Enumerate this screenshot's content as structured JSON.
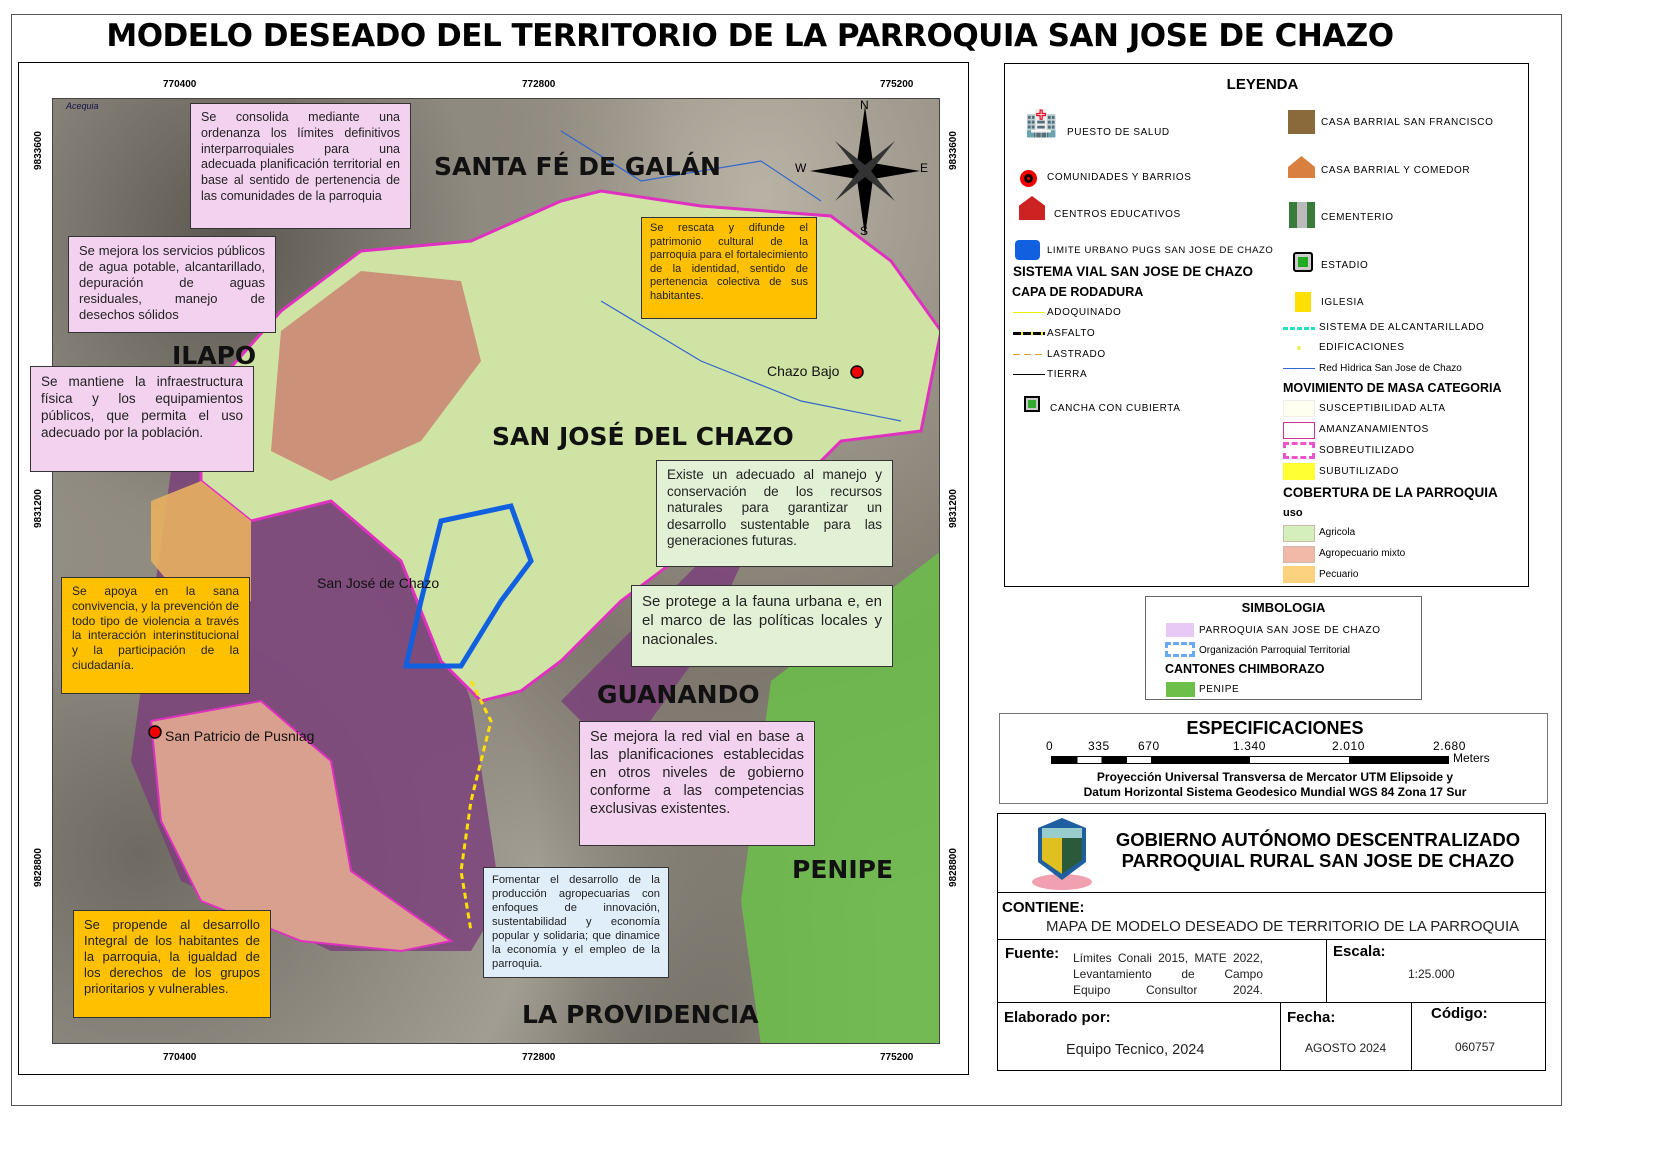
{
  "title": "MODELO DESEADO DEL TERRITORIO DE LA PARROQUIA SAN JOSE DE CHAZO",
  "map": {
    "x_ticks": [
      "770400",
      "772800",
      "775200"
    ],
    "y_ticks": [
      "9833600",
      "9831200",
      "9828800"
    ],
    "regions": {
      "santa_fe": "SANTA FÉ DE GALÁN",
      "ilapo": "ILAPO",
      "san_jose": "SAN JOSÉ DEL CHAZO",
      "guanando": "GUANANDO",
      "penipe": "PENIPE",
      "la_providencia": "LA PROVIDENCIA"
    },
    "towns": {
      "chazo_bajo": "Chazo Bajo",
      "san_jose": "San José de Chazo",
      "san_patricio": "San Patricio de Pusniag"
    },
    "acequia": "Acequia",
    "compass": {
      "n": "N",
      "s": "S",
      "e": "E",
      "w": "W"
    },
    "notes": [
      "Se consolida mediante una ordenanza los límites definitivos interparroquiales para una adecuada planificación territorial en base al sentido de pertenencia de las comunidades de la parroquia",
      "Se mejora los servicios públicos de agua potable, alcantarillado, depuración de aguas residuales, manejo de desechos sólidos",
      "Se mantiene la infraestructura física y los equipamientos públicos, que permita el uso adecuado por la población.",
      "Se rescata y difunde el patrimonio cultural de la parroquia para el fortalecimiento de la identidad, sentido de pertenencia colectiva de sus habitantes.",
      "Existe un adecuado al manejo y conservación de los recursos naturales para garantizar un desarrollo sustentable para las generaciones futuras.",
      "Se protege a la fauna urbana e, en el marco de las políticas locales y nacionales.",
      "Se apoya en la sana convivencia, y la prevención de todo tipo de violencia a través la interacción interinstitucional y la participación de la ciudadanía.",
      "Se mejora la red vial en base a las planificaciones establecidas en otros niveles de gobierno conforme a las competencias exclusivas existentes.",
      "Fomentar el desarrollo de la producción agropecuarias con enfoques de innovación, sustentabilidad y economía popular y solidaria; que dinamice la economía y el empleo de la parroquia.",
      "Se propende al desarrollo Integral de los habitantes de la parroquia, la igualdad de los derechos de los grupos prioritarios y vulnerables."
    ]
  },
  "legend": {
    "title": "LEYENDA",
    "left": {
      "salud": "PUESTO DE SALUD",
      "comunidades": "COMUNIDADES Y BARRIOS",
      "educativos": "CENTROS EDUCATIVOS",
      "limite": "LIMITE URBANO PUGS SAN JOSE DE CHAZO",
      "vial_title": "SISTEMA VIAL SAN JOSE DE CHAZO",
      "rodadura": "CAPA DE RODADURA",
      "adoquinado": "ADOQUINADO",
      "asfalto": "ASFALTO",
      "lastrado": "LASTRADO",
      "tierra": "TIERRA",
      "cancha": "CANCHA CON CUBIERTA"
    },
    "right": {
      "casa_sf": "CASA BARRIAL SAN FRANCISCO",
      "casa_com": "CASA BARRIAL Y COMEDOR",
      "cementerio": "CEMENTERIO",
      "estadio": "ESTADIO",
      "iglesia": "IGLESIA",
      "alcantarillado": "SISTEMA DE ALCANTARILLADO",
      "edificaciones": "EDIFICACIONES",
      "red_hidrica": "Red Hìdrica San Jose de Chazo",
      "mov_title": "MOVIMIENTO DE MASA CATEGORIA",
      "susceptibilidad": "SUSCEPTIBILIDAD ALTA",
      "amanzanamientos": "AMANZANAMIENTOS",
      "sobreutilizado": "SOBREUTILIZADO",
      "subutilizado": "SUBUTILIZADO",
      "cob_title": "COBERTURA DE LA PARROQUIA",
      "uso": "uso",
      "agricola": "Agricola",
      "agropecuario": "Agropecuario mixto",
      "pecuario": "Pecuario"
    },
    "colors": {
      "agricola": "#d4eebc",
      "agropecuario": "#f3b9a8",
      "pecuario": "#fcd27f",
      "subutilizado": "#ffff33",
      "sobreutilizado": "#ee55cc",
      "amanzanamientos": "#cc3399",
      "alcantarillado": "#22e0c0",
      "penipe": "#6cc04a",
      "parroquia": "#e8c8f4",
      "limite": "#1060e0"
    }
  },
  "simbologia": {
    "title": "SIMBOLOGIA",
    "parroquia": "PARROQUIA SAN JOSE DE CHAZO",
    "organizacion": "Organización Parroquial Territorial",
    "cantones": "CANTONES CHIMBORAZO",
    "penipe": "PENIPE"
  },
  "especificaciones": {
    "title": "ESPECIFICACIONES",
    "scale_ticks": [
      "0",
      "335",
      "670",
      "1.340",
      "2.010",
      "2.680"
    ],
    "unit": "Meters",
    "proj1": "Proyección Universal Transversa de Mercator UTM Elipsoide y",
    "proj2": "Datum Horizontal Sistema Geodesico Mundial WGS 84 Zona 17 Sur"
  },
  "titleblock": {
    "org1": "GOBIERNO AUTÓNOMO DESCENTRALIZADO",
    "org2": "PARROQUIAL RURAL SAN JOSE DE CHAZO",
    "contiene_label": "CONTIENE:",
    "contiene": "MAPA DE MODELO DESEADO DE TERRITORIO DE LA PARROQUIA",
    "fuente_label": "Fuente:",
    "fuente1": "Límites Conali 2015, MATE 2022,",
    "fuente2": "Levantamiento de Campo",
    "fuente3": "Equipo Consultor 2024.",
    "escala_label": "Escala:",
    "escala": "1:25.000",
    "elaborado_label": "Elaborado por:",
    "elaborado": "Equipo Tecnico, 2024",
    "fecha_label": "Fecha:",
    "fecha": "AGOSTO 2024",
    "codigo_label": "Código:",
    "codigo": "060757"
  }
}
